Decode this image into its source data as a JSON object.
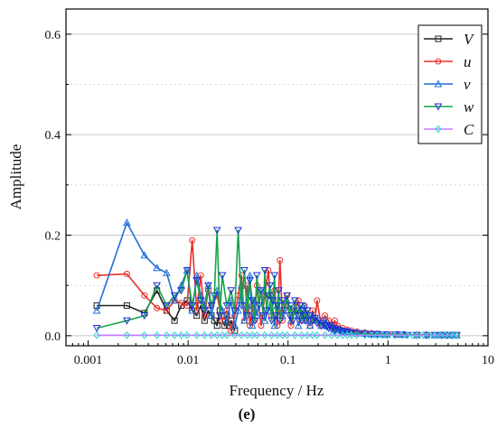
{
  "chart_data": {
    "type": "line",
    "xlabel": "Frequency / Hz",
    "ylabel": "Amplitude",
    "caption": "(e)",
    "xscale": "log",
    "xlim": [
      0.0006,
      10
    ],
    "ylim": [
      -0.02,
      0.65
    ],
    "x_ticks": [
      0.001,
      0.01,
      0.1,
      1,
      10
    ],
    "x_tick_labels": [
      "0.001",
      "0.01",
      "0.1",
      "1",
      "10"
    ],
    "y_ticks": [
      0.0,
      0.2,
      0.4,
      0.6
    ],
    "y_tick_labels": [
      "0.0",
      "0.2",
      "0.4",
      "0.6"
    ],
    "grid": "horizontal",
    "legend_position": "top-right",
    "series": [
      {
        "name": "V",
        "color": "#222222",
        "marker": "square",
        "x": [
          0.00122,
          0.00244,
          0.00366,
          0.00488,
          0.0061,
          0.00732,
          0.00854,
          0.00977,
          0.011,
          0.0122,
          0.0134,
          0.0146,
          0.0159,
          0.0171,
          0.0183,
          0.0195,
          0.0208,
          0.022,
          0.0232,
          0.0244,
          0.0256,
          0.0269,
          0.0281,
          0.0293
        ],
        "y": [
          0.06,
          0.06,
          0.045,
          0.09,
          0.05,
          0.03,
          0.06,
          0.07,
          0.05,
          0.04,
          0.06,
          0.03,
          0.05,
          0.04,
          0.03,
          0.02,
          0.05,
          0.03,
          0.02,
          0.04,
          0.02,
          0.03,
          0.02,
          0.01
        ]
      },
      {
        "name": "u",
        "color": "#e8302a",
        "marker": "circle",
        "x": [
          0.00122,
          0.00244,
          0.00366,
          0.00488,
          0.0061,
          0.00732,
          0.00854,
          0.00977,
          0.011,
          0.0122,
          0.0134,
          0.0146,
          0.0159,
          0.0171,
          0.0195,
          0.022,
          0.0244,
          0.0269,
          0.0293,
          0.0317,
          0.0342,
          0.0366,
          0.039,
          0.0415,
          0.0439,
          0.0464,
          0.0488,
          0.0537,
          0.0586,
          0.0635,
          0.0684,
          0.0732,
          0.0781,
          0.083,
          0.0879,
          0.0928,
          0.0977,
          0.107,
          0.117,
          0.127,
          0.137,
          0.146,
          0.156,
          0.166,
          0.176,
          0.186,
          0.195,
          0.215,
          0.234,
          0.254,
          0.273,
          0.293,
          0.312,
          0.352,
          0.391,
          0.43,
          0.488,
          0.586,
          0.684,
          0.781,
          0.977,
          1.22,
          1.46,
          1.95,
          2.44,
          2.93,
          3.42,
          3.91,
          4.39,
          4.88
        ],
        "y": [
          0.12,
          0.123,
          0.08,
          0.055,
          0.05,
          0.07,
          0.065,
          0.06,
          0.19,
          0.05,
          0.12,
          0.04,
          0.09,
          0.06,
          0.08,
          0.03,
          0.05,
          0.01,
          0.04,
          0.08,
          0.12,
          0.03,
          0.1,
          0.02,
          0.06,
          0.03,
          0.1,
          0.02,
          0.08,
          0.13,
          0.04,
          0.09,
          0.02,
          0.15,
          0.03,
          0.06,
          0.08,
          0.02,
          0.05,
          0.07,
          0.03,
          0.06,
          0.04,
          0.02,
          0.05,
          0.03,
          0.07,
          0.02,
          0.04,
          0.03,
          0.02,
          0.03,
          0.02,
          0.015,
          0.012,
          0.01,
          0.008,
          0.006,
          0.005,
          0.004,
          0.003,
          0.003,
          0.002,
          0.002,
          0.002,
          0.001,
          0.001,
          0.001,
          0.001,
          0.001
        ]
      },
      {
        "name": "v",
        "color": "#1f6fd6",
        "marker": "triangle-up",
        "x": [
          0.00122,
          0.00244,
          0.00366,
          0.00488,
          0.0061,
          0.00732,
          0.00854,
          0.00977,
          0.011,
          0.0122,
          0.0134,
          0.0146,
          0.0159,
          0.0171,
          0.0195,
          0.022,
          0.0244,
          0.0269,
          0.0293,
          0.0317,
          0.0342,
          0.0366,
          0.039,
          0.0415,
          0.0439,
          0.0464,
          0.0488,
          0.0537,
          0.0586,
          0.0635,
          0.0684,
          0.0732,
          0.0781,
          0.0879,
          0.0977,
          0.107,
          0.117,
          0.127,
          0.137,
          0.146,
          0.156,
          0.166,
          0.176,
          0.195,
          0.215,
          0.234,
          0.254,
          0.273,
          0.293,
          0.312,
          0.352,
          0.391,
          0.43,
          0.488,
          0.586,
          0.684,
          0.781,
          0.977,
          1.22,
          1.46,
          1.95,
          2.44,
          2.93,
          3.42,
          3.91,
          4.39,
          4.88
        ],
        "y": [
          0.05,
          0.225,
          0.16,
          0.135,
          0.125,
          0.07,
          0.1,
          0.13,
          0.05,
          0.12,
          0.08,
          0.06,
          0.1,
          0.04,
          0.09,
          0.05,
          0.03,
          0.07,
          0.02,
          0.05,
          0.1,
          0.03,
          0.06,
          0.12,
          0.02,
          0.07,
          0.04,
          0.09,
          0.03,
          0.05,
          0.08,
          0.02,
          0.06,
          0.04,
          0.07,
          0.03,
          0.05,
          0.02,
          0.04,
          0.06,
          0.03,
          0.02,
          0.04,
          0.03,
          0.02,
          0.03,
          0.02,
          0.02,
          0.015,
          0.012,
          0.01,
          0.008,
          0.006,
          0.005,
          0.004,
          0.003,
          0.003,
          0.002,
          0.002,
          0.002,
          0.001,
          0.001,
          0.001,
          0.001,
          0.001,
          0.001,
          0.001
        ]
      },
      {
        "name": "w",
        "color": "#17a34a",
        "marker": "triangle-down",
        "marker_color": "#1a2ed6",
        "x": [
          0.00122,
          0.00244,
          0.00366,
          0.00488,
          0.0061,
          0.00732,
          0.00854,
          0.00977,
          0.011,
          0.0122,
          0.0134,
          0.0146,
          0.0159,
          0.0171,
          0.0183,
          0.0195,
          0.0208,
          0.022,
          0.0244,
          0.0269,
          0.0293,
          0.0317,
          0.0342,
          0.0366,
          0.039,
          0.0415,
          0.0439,
          0.0464,
          0.0488,
          0.0513,
          0.0537,
          0.0562,
          0.0586,
          0.061,
          0.0635,
          0.0659,
          0.0684,
          0.0708,
          0.0732,
          0.0757,
          0.0781,
          0.0806,
          0.083,
          0.0879,
          0.0928,
          0.0977,
          0.103,
          0.107,
          0.112,
          0.117,
          0.122,
          0.127,
          0.132,
          0.137,
          0.142,
          0.146,
          0.151,
          0.156,
          0.166,
          0.176,
          0.186,
          0.195,
          0.205,
          0.215,
          0.225,
          0.234,
          0.244,
          0.254,
          0.264,
          0.273,
          0.283,
          0.293,
          0.312,
          0.332,
          0.352,
          0.371,
          0.391,
          0.43,
          0.469,
          0.508,
          0.586,
          0.684,
          0.781,
          0.879,
          0.977,
          1.17,
          1.37,
          1.56,
          1.95,
          2.44,
          2.93,
          3.42,
          3.91,
          4.39,
          4.88
        ],
        "y": [
          0.015,
          0.03,
          0.04,
          0.1,
          0.06,
          0.08,
          0.09,
          0.13,
          0.06,
          0.11,
          0.07,
          0.05,
          0.1,
          0.06,
          0.08,
          0.21,
          0.04,
          0.12,
          0.06,
          0.09,
          0.05,
          0.21,
          0.06,
          0.13,
          0.04,
          0.11,
          0.07,
          0.03,
          0.12,
          0.06,
          0.09,
          0.04,
          0.13,
          0.05,
          0.08,
          0.1,
          0.03,
          0.07,
          0.12,
          0.04,
          0.06,
          0.09,
          0.03,
          0.07,
          0.05,
          0.08,
          0.04,
          0.06,
          0.03,
          0.07,
          0.05,
          0.04,
          0.06,
          0.03,
          0.05,
          0.04,
          0.03,
          0.05,
          0.04,
          0.03,
          0.035,
          0.025,
          0.03,
          0.02,
          0.025,
          0.02,
          0.018,
          0.015,
          0.02,
          0.012,
          0.015,
          0.01,
          0.012,
          0.01,
          0.008,
          0.009,
          0.007,
          0.006,
          0.005,
          0.005,
          0.004,
          0.003,
          0.003,
          0.002,
          0.002,
          0.002,
          0.002,
          0.001,
          0.001,
          0.001,
          0.001,
          0.001,
          0.001,
          0.001,
          0.001
        ]
      },
      {
        "name": "C",
        "color": "#c77dff",
        "marker": "diamond",
        "marker_color": "#2ad4d4",
        "x": [
          0.00122,
          0.00244,
          0.00366,
          0.00488,
          0.0061,
          0.00732,
          0.00854,
          0.00977,
          0.0122,
          0.0146,
          0.0171,
          0.0195,
          0.022,
          0.0244,
          0.0293,
          0.0342,
          0.039,
          0.0439,
          0.0488,
          0.0586,
          0.0684,
          0.0781,
          0.0879,
          0.0977,
          0.117,
          0.137,
          0.156,
          0.176,
          0.195,
          0.234,
          0.273,
          0.312,
          0.352,
          0.391,
          0.43,
          0.488,
          0.586,
          0.684,
          0.781,
          0.879,
          0.977,
          1.17,
          1.37,
          1.56,
          1.76,
          1.95,
          2.25,
          2.54,
          2.93,
          3.32,
          3.71,
          4.1,
          4.49,
          4.88
        ],
        "y": [
          0.001,
          0.001,
          0.001,
          0.001,
          0.001,
          0.001,
          0.001,
          0.001,
          0.001,
          0.001,
          0.001,
          0.001,
          0.001,
          0.001,
          0.001,
          0.001,
          0.001,
          0.001,
          0.001,
          0.001,
          0.001,
          0.001,
          0.001,
          0.001,
          0.001,
          0.001,
          0.001,
          0.001,
          0.001,
          0.001,
          0.001,
          0.001,
          0.001,
          0.001,
          0.001,
          0.001,
          0.001,
          0.001,
          0.001,
          0.001,
          0.001,
          0.001,
          0.001,
          0.001,
          0.001,
          0.001,
          0.001,
          0.001,
          0.001,
          0.001,
          0.001,
          0.001,
          0.001,
          0.001
        ]
      }
    ]
  }
}
